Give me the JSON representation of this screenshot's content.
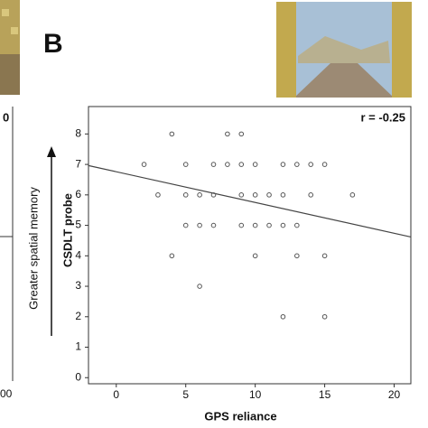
{
  "panel_label": "B",
  "left_panel": {
    "label_top": "0",
    "tick_bottom": "00"
  },
  "chart_data": {
    "type": "scatter",
    "annotation": "r = -0.25",
    "x_label": "GPS reliance",
    "y_label": "CSDLT probe",
    "side_label": "Greater spatial memory",
    "x": [
      4,
      8,
      9,
      2,
      5,
      7,
      8,
      9,
      10,
      12,
      13,
      14,
      15,
      3,
      5,
      6,
      7,
      9,
      10,
      11,
      12,
      14,
      17,
      5,
      6,
      7,
      9,
      10,
      11,
      12,
      13,
      4,
      10,
      13,
      15,
      6,
      12,
      15
    ],
    "values": [
      8,
      8,
      8,
      7,
      7,
      7,
      7,
      7,
      7,
      7,
      7,
      7,
      7,
      6,
      6,
      6,
      6,
      6,
      6,
      6,
      6,
      6,
      6,
      5,
      5,
      5,
      5,
      5,
      5,
      5,
      5,
      4,
      4,
      4,
      4,
      3,
      2,
      2
    ],
    "color": "#555555",
    "fit": {
      "intercept": 6.76,
      "slope": -0.101
    },
    "xlim": [
      -2,
      21.2
    ],
    "ylim": [
      -0.2,
      8.9
    ],
    "xticks": [
      0,
      5,
      10,
      15,
      20
    ],
    "yticks": [
      0,
      1,
      2,
      3,
      4,
      5,
      6,
      7,
      8
    ]
  }
}
